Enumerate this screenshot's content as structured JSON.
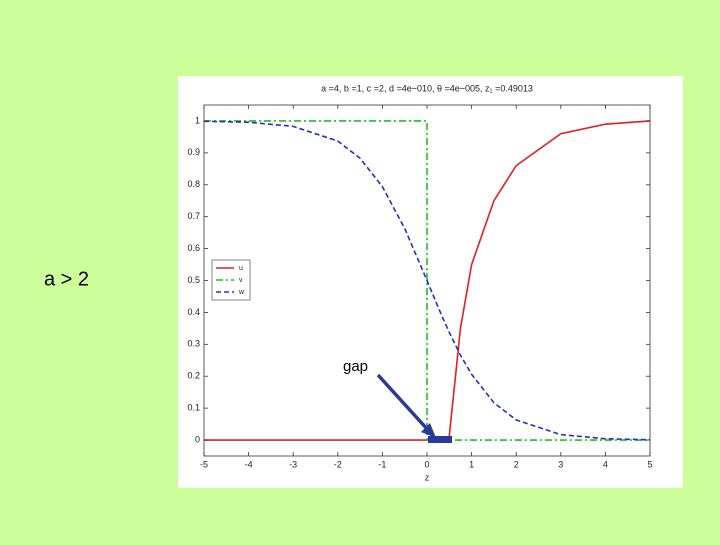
{
  "slide_label": "a > 2",
  "chart_data": {
    "type": "line",
    "title": "a =4, b =1, c =2, d =4e−010, θ =4e−005, z₁ =0.49013",
    "x_label": "z",
    "annotation": "gap",
    "x": [
      -5,
      -4,
      -3,
      -2,
      -1.5,
      -1,
      -0.5,
      0,
      0,
      0.25,
      0.49,
      0.75,
      1,
      1.5,
      2,
      3,
      4,
      5
    ],
    "series": [
      {
        "name": "u",
        "color": "#e02020",
        "linestyle": "solid",
        "values": [
          0,
          0,
          0,
          0,
          0,
          0,
          0,
          0,
          0,
          0,
          0,
          0.35,
          0.55,
          0.75,
          0.86,
          0.96,
          0.99,
          1
        ]
      },
      {
        "name": "v",
        "color": "#20c020",
        "linestyle": "dashdot",
        "values": [
          1,
          1,
          1,
          1,
          1,
          1,
          1,
          1,
          0,
          0,
          0,
          0,
          0,
          0,
          0,
          0,
          0,
          0
        ]
      },
      {
        "name": "w",
        "color": "#2030c0",
        "linestyle": "dashed",
        "values": [
          0.999,
          0.996,
          0.983,
          0.937,
          0.883,
          0.794,
          0.663,
          0.5,
          0.5,
          0.416,
          0.34,
          0.266,
          0.206,
          0.117,
          0.063,
          0.017,
          0.004,
          0.001
        ]
      }
    ],
    "xlim": [
      -5,
      5
    ],
    "ylim": [
      -0.05,
      1.05
    ],
    "xticks": [
      -5,
      -4,
      -3,
      -2,
      -1,
      0,
      1,
      2,
      3,
      4,
      5
    ],
    "yticks": [
      0,
      0.1,
      0.2,
      0.3,
      0.4,
      0.5,
      0.6,
      0.7,
      0.8,
      0.9,
      1
    ],
    "grid": false,
    "legend": "upper left"
  }
}
